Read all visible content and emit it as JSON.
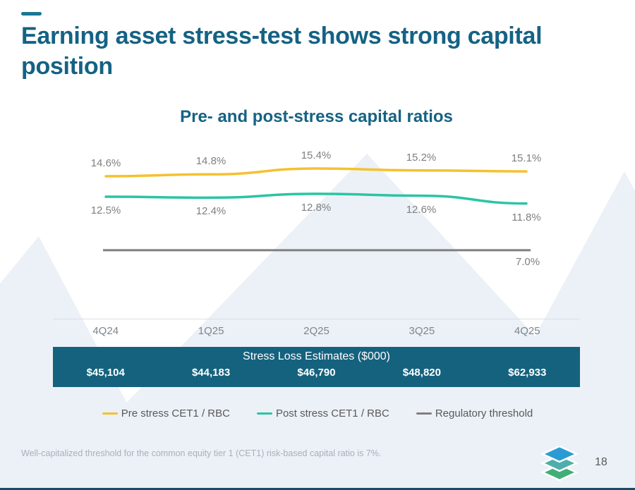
{
  "slide": {
    "title": "Earning asset stress-test shows strong capital position",
    "footnote": "Well-capitalized threshold for the common equity tier 1 (CET1) risk-based capital ratio is 7%.",
    "page_number": "18",
    "accent_color": "#156284"
  },
  "chart_data": {
    "type": "line",
    "title": "Pre- and post-stress capital ratios",
    "categories": [
      "4Q24",
      "1Q25",
      "2Q25",
      "3Q25",
      "4Q25"
    ],
    "series": [
      {
        "name": "Pre stress CET1 / RBC",
        "values": [
          14.6,
          14.8,
          15.4,
          15.2,
          15.1
        ],
        "labels": [
          "14.6%",
          "14.8%",
          "15.4%",
          "15.2%",
          "15.1%"
        ],
        "color": "#f5c12e"
      },
      {
        "name": "Post stress CET1 / RBC",
        "values": [
          12.5,
          12.4,
          12.8,
          12.6,
          11.8
        ],
        "labels": [
          "12.5%",
          "12.4%",
          "12.8%",
          "12.6%",
          "11.8%"
        ],
        "color": "#2bc4a4"
      },
      {
        "name": "Regulatory threshold",
        "type": "threshold",
        "values": [
          7.0
        ],
        "label": "7.0%",
        "color": "#7f7f7f"
      }
    ],
    "ylim": [
      6,
      17
    ],
    "grid": false,
    "legend_position": "bottom",
    "label_color": "#7f7f7f"
  },
  "table": {
    "title": "Stress Loss Estimates ($000)",
    "values": [
      "$45,104",
      "$44,183",
      "$46,790",
      "$48,820",
      "$62,933"
    ],
    "bg_color": "#15627e"
  },
  "logo": {
    "name": "stacked-layers-logo",
    "layer_colors": [
      "#2d9bd3",
      "#4faeab",
      "#42ae77"
    ]
  },
  "watermark_color": "#ecf1f7"
}
